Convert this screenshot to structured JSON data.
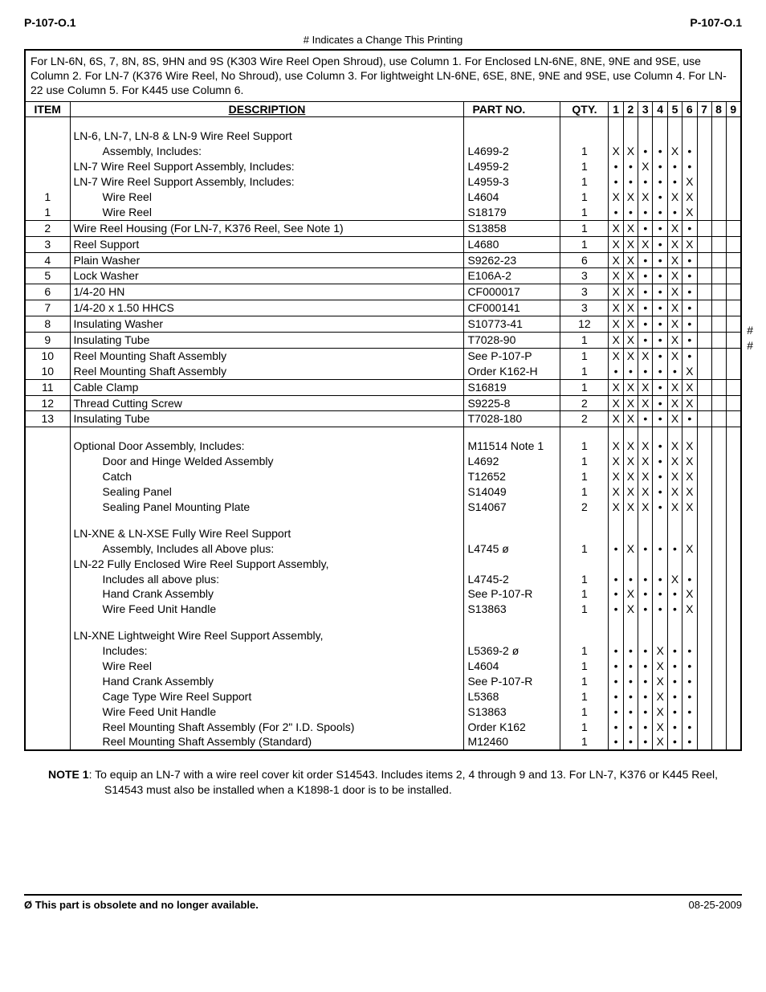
{
  "header": {
    "left": "P-107-O.1",
    "right": "P-107-O.1"
  },
  "change_note": "# Indicates a Change This Printing",
  "instructions": "For LN-6N, 6S, 7, 8N, 8S, 9HN and 9S (K303 Wire Reel Open Shroud), use Column 1. For Enclosed LN-6NE, 8NE, 9NE and 9SE, use Column 2. For LN-7 (K376 Wire Reel, No Shroud), use Column 3. For lightweight LN-6NE, 6SE, 8NE, 9NE and 9SE, use Column 4. For LN-22 use Column 5. For K445 use Column 6.",
  "columns": [
    "ITEM",
    "DESCRIPTION",
    "PART NO.",
    "QTY.",
    "1",
    "2",
    "3",
    "4",
    "5",
    "6",
    "7",
    "8",
    "9"
  ],
  "rows": [
    {
      "item": "",
      "desc": "LN-6, LN-7, LN-8 & LN-9 Wire Reel Support",
      "part": "",
      "qty": "",
      "m": [
        "",
        "",
        "",
        "",
        "",
        "",
        "",
        "",
        ""
      ],
      "topspace": true
    },
    {
      "item": "",
      "desc": "Assembly, Includes:",
      "part": "L4699-2",
      "qty": "1",
      "m": [
        "X",
        "X",
        "•",
        "•",
        "X",
        "•",
        "",
        "",
        ""
      ],
      "indent": true
    },
    {
      "item": "",
      "desc": "LN-7 Wire Reel Support Assembly, Includes:",
      "part": "L4959-2",
      "qty": "1",
      "m": [
        "•",
        "•",
        "X",
        "•",
        "•",
        "•",
        "",
        "",
        ""
      ]
    },
    {
      "item": "",
      "desc": "LN-7 Wire Reel Support Assembly, Includes:",
      "part": "L4959-3",
      "qty": "1",
      "m": [
        "•",
        "•",
        "•",
        "•",
        "•",
        "X",
        "",
        "",
        ""
      ]
    },
    {
      "item": "1",
      "desc": "Wire Reel",
      "part": "L4604",
      "qty": "1",
      "m": [
        "X",
        "X",
        "X",
        "•",
        "X",
        "X",
        "",
        "",
        ""
      ],
      "indent": true
    },
    {
      "item": "1",
      "desc": "Wire Reel",
      "part": "S18179",
      "qty": "1",
      "m": [
        "•",
        "•",
        "•",
        "•",
        "•",
        "X",
        "",
        "",
        ""
      ],
      "indent": true
    },
    {
      "item": "2",
      "desc": "Wire Reel Housing (For LN-7, K376 Reel, See Note 1)",
      "part": "S13858",
      "qty": "1",
      "m": [
        "X",
        "X",
        "•",
        "•",
        "X",
        "•",
        "",
        "",
        ""
      ],
      "sep": true,
      "smalltail": true
    },
    {
      "item": "3",
      "desc": "Reel Support",
      "part": "L4680",
      "qty": "1",
      "m": [
        "X",
        "X",
        "X",
        "•",
        "X",
        "X",
        "",
        "",
        ""
      ],
      "sep": true
    },
    {
      "item": "4",
      "desc": "Plain Washer",
      "part": "S9262-23",
      "qty": "6",
      "m": [
        "X",
        "X",
        "•",
        "•",
        "X",
        "•",
        "",
        "",
        ""
      ],
      "sep": true
    },
    {
      "item": "5",
      "desc": "Lock Washer",
      "part": "E106A-2",
      "qty": "3",
      "m": [
        "X",
        "X",
        "•",
        "•",
        "X",
        "•",
        "",
        "",
        ""
      ],
      "sep": true
    },
    {
      "item": "6",
      "desc": "1/4-20 HN",
      "part": "CF000017",
      "qty": "3",
      "m": [
        "X",
        "X",
        "•",
        "•",
        "X",
        "•",
        "",
        "",
        ""
      ],
      "sep": true,
      "flag": "#",
      "flagtop": 368
    },
    {
      "item": "7",
      "desc": "1/4-20 x 1.50 HHCS",
      "part": "CF000141",
      "qty": "3",
      "m": [
        "X",
        "X",
        "•",
        "•",
        "X",
        "•",
        "",
        "",
        ""
      ],
      "sep": true,
      "flag": "#",
      "flagtop": 386
    },
    {
      "item": "8",
      "desc": "Insulating Washer",
      "part": "S10773-41",
      "qty": "12",
      "m": [
        "X",
        "X",
        "•",
        "•",
        "X",
        "•",
        "",
        "",
        ""
      ],
      "sep": true
    },
    {
      "item": "9",
      "desc": "Insulating Tube",
      "part": "T7028-90",
      "qty": "1",
      "m": [
        "X",
        "X",
        "•",
        "•",
        "X",
        "•",
        "",
        "",
        ""
      ],
      "sep": true
    },
    {
      "item": "10",
      "desc": "Reel Mounting Shaft Assembly",
      "part": "See P-107-P",
      "qty": "1",
      "m": [
        "X",
        "X",
        "X",
        "•",
        "X",
        "•",
        "",
        "",
        ""
      ],
      "sep": true
    },
    {
      "item": "10",
      "desc": "Reel Mounting Shaft Assembly",
      "part": "Order K162-H",
      "qty": "1",
      "m": [
        "•",
        "•",
        "•",
        "•",
        "•",
        "X",
        "",
        "",
        ""
      ]
    },
    {
      "item": "11",
      "desc": "Cable Clamp",
      "part": "S16819",
      "qty": "1",
      "m": [
        "X",
        "X",
        "X",
        "•",
        "X",
        "X",
        "",
        "",
        ""
      ],
      "sep": true
    },
    {
      "item": "12",
      "desc": "Thread Cutting Screw",
      "part": "S9225-8",
      "qty": "2",
      "m": [
        "X",
        "X",
        "X",
        "•",
        "X",
        "X",
        "",
        "",
        ""
      ],
      "sep": true
    },
    {
      "item": "13",
      "desc": "Insulating Tube",
      "part": "T7028-180",
      "qty": "2",
      "m": [
        "X",
        "X",
        "•",
        "•",
        "X",
        "•",
        "",
        "",
        ""
      ],
      "sep": true,
      "sepbot": true
    },
    {
      "item": "",
      "desc": "Optional Door Assembly, Includes:",
      "part": "M11514 Note 1",
      "qty": "1",
      "m": [
        "X",
        "X",
        "X",
        "•",
        "X",
        "X",
        "",
        "",
        ""
      ],
      "topspace": true,
      "bigspace": true
    },
    {
      "item": "",
      "desc": "Door and Hinge Welded Assembly",
      "part": "L4692",
      "qty": "1",
      "m": [
        "X",
        "X",
        "X",
        "•",
        "X",
        "X",
        "",
        "",
        ""
      ],
      "indent": true
    },
    {
      "item": "",
      "desc": "Catch",
      "part": "T12652",
      "qty": "1",
      "m": [
        "X",
        "X",
        "X",
        "•",
        "X",
        "X",
        "",
        "",
        ""
      ],
      "indent": true
    },
    {
      "item": "",
      "desc": "Sealing Panel",
      "part": "S14049",
      "qty": "1",
      "m": [
        "X",
        "X",
        "X",
        "•",
        "X",
        "X",
        "",
        "",
        ""
      ],
      "indent": true
    },
    {
      "item": "",
      "desc": "Sealing Panel Mounting Plate",
      "part": "S14067",
      "qty": "2",
      "m": [
        "X",
        "X",
        "X",
        "•",
        "X",
        "X",
        "",
        "",
        ""
      ],
      "indent": true
    },
    {
      "item": "",
      "desc": "LN-XNE & LN-XSE Fully Wire Reel Support",
      "part": "",
      "qty": "",
      "m": [
        "",
        "",
        "",
        "",
        "",
        "",
        "",
        "",
        ""
      ],
      "topspace": true
    },
    {
      "item": "",
      "desc": "Assembly, Includes all Above plus:",
      "part": "L4745 ø",
      "qty": "1",
      "m": [
        "•",
        "X",
        "•",
        "•",
        "•",
        "X",
        "",
        "",
        ""
      ],
      "indent": true
    },
    {
      "item": "",
      "desc": "LN-22 Fully Enclosed Wire Reel Support Assembly,",
      "part": "",
      "qty": "",
      "m": [
        "",
        "",
        "",
        "",
        "",
        "",
        "",
        "",
        ""
      ]
    },
    {
      "item": "",
      "desc": "Includes all above plus:",
      "part": "L4745-2",
      "qty": "1",
      "m": [
        "•",
        "•",
        "•",
        "•",
        "X",
        "•",
        "",
        "",
        ""
      ],
      "indent": true
    },
    {
      "item": "",
      "desc": "Hand Crank Assembly",
      "part": "See P-107-R",
      "qty": "1",
      "m": [
        "•",
        "X",
        "•",
        "•",
        "•",
        "X",
        "",
        "",
        ""
      ],
      "indent": true
    },
    {
      "item": "",
      "desc": "Wire Feed Unit Handle",
      "part": "S13863",
      "qty": "1",
      "m": [
        "•",
        "X",
        "•",
        "•",
        "•",
        "X",
        "",
        "",
        ""
      ],
      "indent": true
    },
    {
      "item": "",
      "desc": "LN-XNE Lightweight Wire Reel Support Assembly,",
      "part": "",
      "qty": "",
      "m": [
        "",
        "",
        "",
        "",
        "",
        "",
        "",
        "",
        ""
      ],
      "topspace": true
    },
    {
      "item": "",
      "desc": "Includes:",
      "part": "L5369-2 ø",
      "qty": "1",
      "m": [
        "•",
        "•",
        "•",
        "X",
        "•",
        "•",
        "",
        "",
        ""
      ],
      "indent": true
    },
    {
      "item": "",
      "desc": "Wire Reel",
      "part": "L4604",
      "qty": "1",
      "m": [
        "•",
        "•",
        "•",
        "X",
        "•",
        "•",
        "",
        "",
        ""
      ],
      "indent": true
    },
    {
      "item": "",
      "desc": "Hand Crank Assembly",
      "part": "See P-107-R",
      "qty": "1",
      "m": [
        "•",
        "•",
        "•",
        "X",
        "•",
        "•",
        "",
        "",
        ""
      ],
      "indent": true
    },
    {
      "item": "",
      "desc": "Cage Type Wire Reel Support",
      "part": "L5368",
      "qty": "1",
      "m": [
        "•",
        "•",
        "•",
        "X",
        "•",
        "•",
        "",
        "",
        ""
      ],
      "indent": true
    },
    {
      "item": "",
      "desc": "Wire Feed Unit Handle",
      "part": "S13863",
      "qty": "1",
      "m": [
        "•",
        "•",
        "•",
        "X",
        "•",
        "•",
        "",
        "",
        ""
      ],
      "indent": true
    },
    {
      "item": "",
      "desc": "Reel Mounting Shaft Assembly (For 2\" I.D. Spools)",
      "part": "Order K162",
      "qty": "1",
      "m": [
        "•",
        "•",
        "•",
        "X",
        "•",
        "•",
        "",
        "",
        ""
      ],
      "indent": true
    },
    {
      "item": "",
      "desc": "Reel Mounting Shaft Assembly (Standard)",
      "part": "M12460",
      "qty": "1",
      "m": [
        "•",
        "•",
        "•",
        "X",
        "•",
        "•",
        "",
        "",
        ""
      ],
      "indent": true
    }
  ],
  "note": {
    "label": "NOTE 1",
    "text": ": To equip an LN-7 with a wire reel cover kit order S14543. Includes items 2, 4 through 9 and 13. For LN-7, K376 or K445 Reel, S14543 must also be installed when a K1898-1 door is to be installed."
  },
  "footer": {
    "left": "Ø  This part is obsolete and no longer available.",
    "right": "08-25-2009"
  }
}
